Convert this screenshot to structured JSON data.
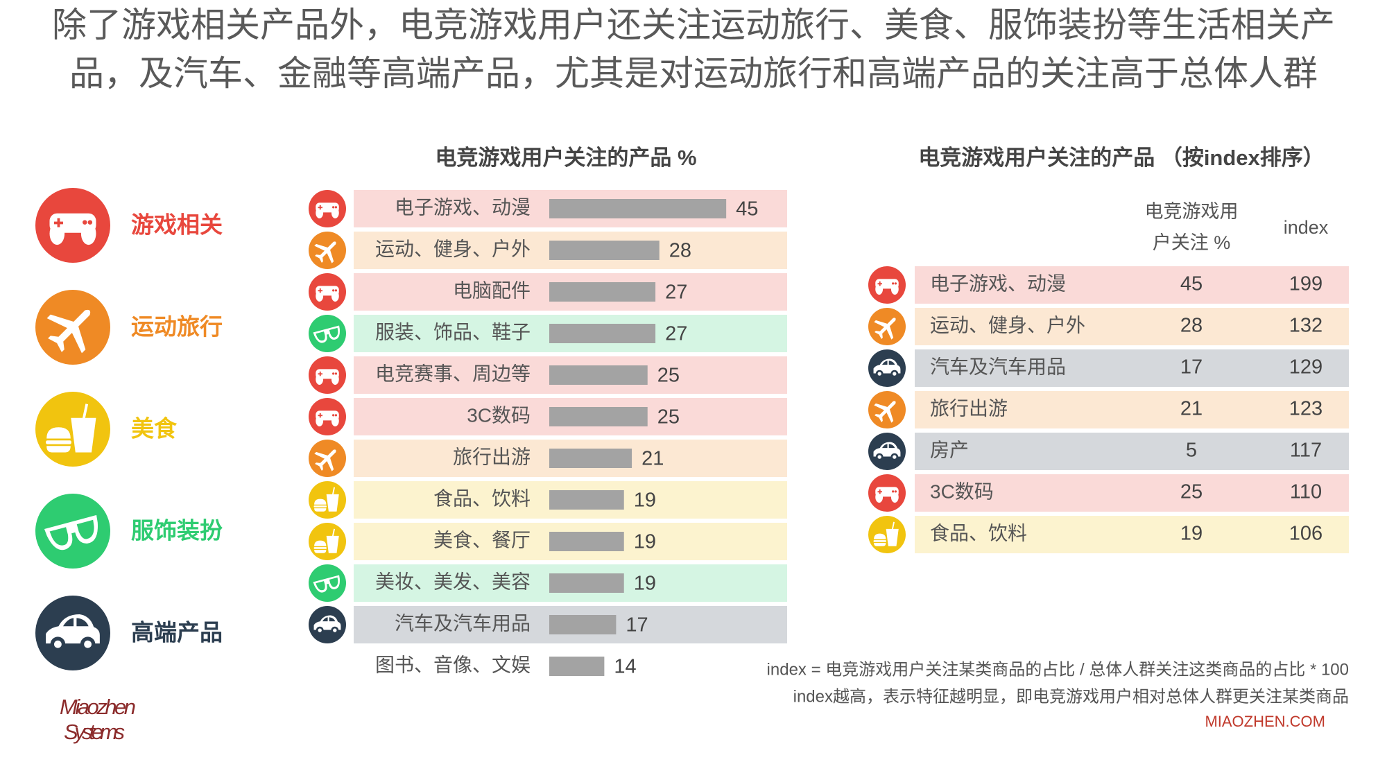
{
  "title": [
    "除了游戏相关产品外，电竞游戏用户还关注运动旅行、美食、服饰装扮等生活相关产",
    "品，及汽车、金融等高端产品，尤其是对运动旅行和高端产品的关注高于总体人群"
  ],
  "legend": [
    {
      "name": "游戏相关",
      "color": "#e8473d"
    },
    {
      "name": "运动旅行",
      "color": "#ef8a25"
    },
    {
      "name": "美食",
      "color": "#f1c40f"
    },
    {
      "name": "服饰装扮",
      "color": "#2ecc71"
    },
    {
      "name": "高端产品",
      "color": "#2c3e50"
    }
  ],
  "chart_data": {
    "type": "bar",
    "orientation": "horizontal",
    "title": "电竞游戏用户关注的产品 %",
    "categories": [
      "电子游戏、动漫",
      "运动、健身、户外",
      "电脑配件",
      "服装、饰品、鞋子",
      "电竞赛事、周边等",
      "3C数码",
      "旅行出游",
      "食品、饮料",
      "美食、餐厅",
      "美妆、美发、美容",
      "汽车及汽车用品",
      "图书、音像、文娱"
    ],
    "values": [
      45,
      28,
      27,
      27,
      25,
      25,
      21,
      19,
      19,
      19,
      17,
      14
    ],
    "color": "#a3a3a3",
    "row_colors": [
      "#e8473d",
      "#ef8a25",
      "#e8473d",
      "#2ecc71",
      "#e8473d",
      "#e8473d",
      "#ef8a25",
      "#f1c40f",
      "#f1c40f",
      "#2ecc71",
      "#2c3e50",
      null
    ]
  },
  "table": {
    "title": "电竞游戏用户关注的产品 （按index排序）",
    "columns": [
      [
        "电竞游戏用",
        "户关注 %"
      ],
      "index"
    ],
    "rows": [
      [
        "电子游戏、动漫",
        45,
        199
      ],
      [
        "运动、健身、户外",
        28,
        132
      ],
      [
        "汽车及汽车用品",
        17,
        129
      ],
      [
        "旅行出游",
        21,
        123
      ],
      [
        "房产",
        5,
        117
      ],
      [
        "3C数码",
        25,
        110
      ],
      [
        "食品、饮料",
        19,
        106
      ]
    ],
    "row_colors": [
      "#e8473d",
      "#ef8a25",
      "#2c3e50",
      "#ef8a25",
      "#2c3e50",
      "#e8473d",
      "#f1c40f"
    ]
  },
  "footnotes": [
    "index = 电竞游戏用户关注某类商品的占比 / 总体人群关注这类商品的占比 * 100",
    "index越高，表示特征越明显，即电竞游戏用户相对总体人群更关注某类商品"
  ],
  "logo": [
    "Miaozhen",
    "Systems"
  ],
  "website": "MIAOZHEN.COM"
}
